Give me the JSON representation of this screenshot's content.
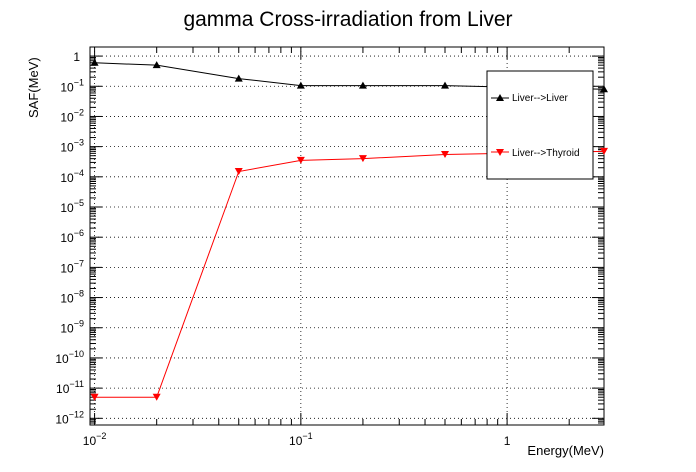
{
  "chart_data": {
    "type": "line",
    "title": "gamma Cross-irradiation from Liver",
    "xlabel": "Energy(MeV)",
    "ylabel": "SAF(MeV)",
    "x_scale": "log",
    "y_scale": "log",
    "xlim": [
      0.0095,
      2.95
    ],
    "ylim": [
      6e-13,
      2
    ],
    "grid": true,
    "legend_placement": "top-right",
    "x_tick_labels": [
      {
        "value": 0.01,
        "base": "10",
        "exp": "−2"
      },
      {
        "value": 0.1,
        "base": "10",
        "exp": "−1"
      },
      {
        "value": 1,
        "base": "1",
        "exp": ""
      }
    ],
    "y_tick_labels": [
      {
        "value": 1,
        "base": "1",
        "exp": ""
      },
      {
        "value": 0.1,
        "base": "10",
        "exp": "−1"
      },
      {
        "value": 0.01,
        "base": "10",
        "exp": "−2"
      },
      {
        "value": 0.001,
        "base": "10",
        "exp": "−3"
      },
      {
        "value": 0.0001,
        "base": "10",
        "exp": "−4"
      },
      {
        "value": 1e-05,
        "base": "10",
        "exp": "−5"
      },
      {
        "value": 1e-06,
        "base": "10",
        "exp": "−6"
      },
      {
        "value": 1e-07,
        "base": "10",
        "exp": "−7"
      },
      {
        "value": 1e-08,
        "base": "10",
        "exp": "−8"
      },
      {
        "value": 1e-09,
        "base": "10",
        "exp": "−9"
      },
      {
        "value": 1e-10,
        "base": "10",
        "exp": "−10"
      },
      {
        "value": 1e-11,
        "base": "10",
        "exp": "−11"
      },
      {
        "value": 1e-12,
        "base": "10",
        "exp": "−12"
      }
    ],
    "series": [
      {
        "name": "Liver-->Liver",
        "color": "#000000",
        "marker": "triangle-up",
        "x": [
          0.01,
          0.02,
          0.05,
          0.1,
          0.2,
          0.5,
          2.95
        ],
        "y": [
          0.6,
          0.5,
          0.18,
          0.105,
          0.105,
          0.105,
          0.08
        ]
      },
      {
        "name": "Liver-->Thyroid",
        "color": "#ff0000",
        "marker": "triangle-down",
        "x": [
          0.01,
          0.02,
          0.05,
          0.1,
          0.2,
          0.5,
          2.95
        ],
        "y": [
          5e-12,
          5e-12,
          0.00015,
          0.00035,
          0.0004,
          0.00055,
          0.0007
        ]
      }
    ]
  }
}
